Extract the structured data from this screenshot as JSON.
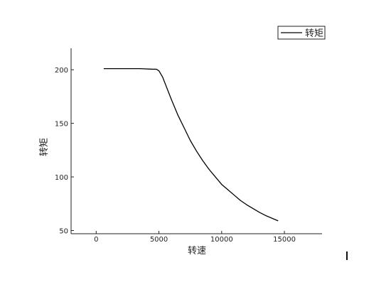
{
  "chart_data": {
    "type": "line",
    "xlabel": "转速",
    "ylabel": "转矩",
    "xlim": [
      -2000,
      18000
    ],
    "ylim": [
      47,
      220
    ],
    "x_ticks": [
      0,
      5000,
      10000,
      15000
    ],
    "y_ticks": [
      50,
      100,
      150,
      200
    ],
    "legend_position": "top-right",
    "grid": false,
    "series": [
      {
        "name": "转矩",
        "color": "#000000",
        "x": [
          600,
          1500,
          2500,
          3500,
          4500,
          4800,
          5000,
          5300,
          5600,
          6000,
          6500,
          7000,
          7500,
          8000,
          8500,
          9000,
          9500,
          10000,
          10500,
          11000,
          11500,
          12000,
          12500,
          13000,
          13500,
          14000,
          14500
        ],
        "y": [
          201,
          201,
          201,
          201,
          200.5,
          200.5,
          199,
          193,
          184,
          172,
          158,
          146,
          134,
          124,
          115,
          107,
          100,
          93,
          88,
          83,
          78,
          74,
          70.5,
          67,
          64,
          61.5,
          59
        ]
      }
    ]
  },
  "colors": {
    "axis": "#222222",
    "background": "#ffffff"
  }
}
